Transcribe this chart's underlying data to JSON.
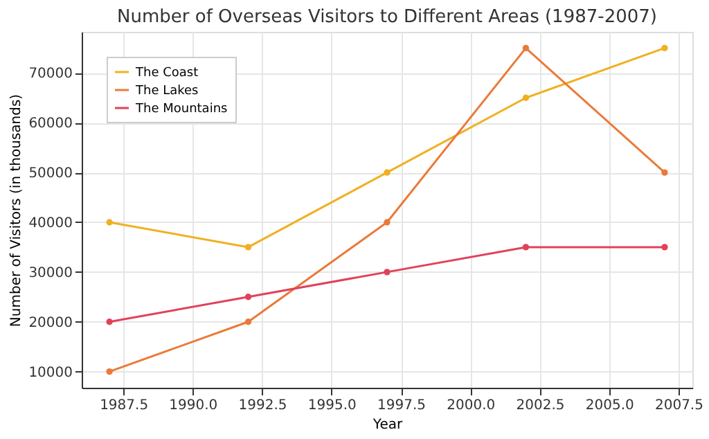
{
  "chart_data": {
    "type": "line",
    "title": "Number of Overseas Visitors to Different Areas (1987-2007)",
    "xlabel": "Year",
    "ylabel": "Number of Visitors (in thousands)",
    "x": [
      1987,
      1992,
      1997,
      2002,
      2007
    ],
    "series": [
      {
        "name": "The Coast",
        "color": "#f0b021",
        "values": [
          40000,
          35000,
          50000,
          65000,
          75000
        ]
      },
      {
        "name": "The Lakes",
        "color": "#ea7a38",
        "values": [
          10000,
          20000,
          40000,
          75000,
          50000
        ]
      },
      {
        "name": "The Mountains",
        "color": "#e2415a",
        "values": [
          20000,
          25000,
          30000,
          35000,
          35000
        ]
      }
    ],
    "xlim": [
      1986,
      2008
    ],
    "ylim": [
      6750,
      78250
    ],
    "xticks": [
      {
        "value": 1987.5,
        "label": "1987.5"
      },
      {
        "value": 1990,
        "label": "1990.0"
      },
      {
        "value": 1992.5,
        "label": "1992.5"
      },
      {
        "value": 1995,
        "label": "1995.0"
      },
      {
        "value": 1997.5,
        "label": "1997.5"
      },
      {
        "value": 2000,
        "label": "2000.0"
      },
      {
        "value": 2002.5,
        "label": "2002.5"
      },
      {
        "value": 2005,
        "label": "2005.0"
      },
      {
        "value": 2007.5,
        "label": "2007.5"
      }
    ],
    "yticks": [
      10000,
      20000,
      30000,
      40000,
      50000,
      60000,
      70000
    ],
    "grid": true,
    "legend": "top left",
    "marker": "circle",
    "line_style": "solid"
  }
}
